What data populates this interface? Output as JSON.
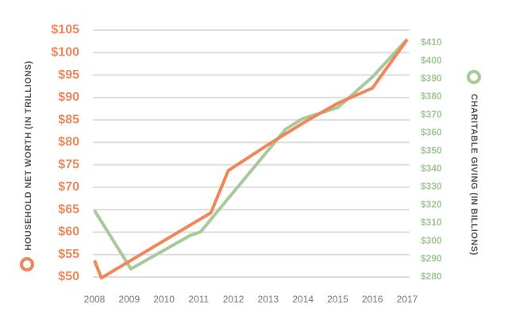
{
  "chart_data": {
    "type": "line",
    "ylabel": "HOUSEHOLD NET WORTH (IN TRILLIONS)",
    "y2label": "CHARITABLE GIVING (IN BILLIONS)",
    "xlim": [
      2008,
      2017
    ],
    "xticks": [
      2008,
      2009,
      2010,
      2011,
      2012,
      2013,
      2014,
      2015,
      2016,
      2017
    ],
    "ylim": [
      50,
      105
    ],
    "yticks": [
      {
        "value": 50,
        "label": "$50"
      },
      {
        "value": 55,
        "label": "$55"
      },
      {
        "value": 60,
        "label": "$60"
      },
      {
        "value": 65,
        "label": "$65"
      },
      {
        "value": 70,
        "label": "$70"
      },
      {
        "value": 75,
        "label": "$75"
      },
      {
        "value": 80,
        "label": "$80"
      },
      {
        "value": 85,
        "label": "$85"
      },
      {
        "value": 90,
        "label": "$90"
      },
      {
        "value": 95,
        "label": "$95"
      },
      {
        "value": 100,
        "label": "$100"
      },
      {
        "value": 105,
        "label": "$105"
      }
    ],
    "y2lim": [
      280,
      417
    ],
    "y2ticks": [
      {
        "value": 280,
        "label": "$280"
      },
      {
        "value": 290,
        "label": "$290"
      },
      {
        "value": 300,
        "label": "$300"
      },
      {
        "value": 310,
        "label": "$310"
      },
      {
        "value": 320,
        "label": "$320"
      },
      {
        "value": 330,
        "label": "$330"
      },
      {
        "value": 340,
        "label": "$340"
      },
      {
        "value": 350,
        "label": "$350"
      },
      {
        "value": 360,
        "label": "$360"
      },
      {
        "value": 370,
        "label": "$370"
      },
      {
        "value": 380,
        "label": "$380"
      },
      {
        "value": 390,
        "label": "$390"
      },
      {
        "value": 400,
        "label": "$400"
      },
      {
        "value": 410,
        "label": "$410"
      }
    ],
    "grid": true,
    "series": [
      {
        "color": "#a8c99a",
        "axis": "y2",
        "x": [
          2008,
          2009.05,
          2010.75,
          2011.05,
          2013.5,
          2014,
          2015,
          2016,
          2017
        ],
        "values": [
          317,
          284.5,
          303,
          305,
          362,
          368,
          374,
          391,
          412
        ]
      },
      {
        "color": "#f0875a",
        "x": [
          2008,
          2008.2,
          2011.35,
          2011.85,
          2013,
          2014,
          2015,
          2016,
          2017
        ],
        "values": [
          53.7,
          49.8,
          64.3,
          73.7,
          79.5,
          84.3,
          88.7,
          92.1,
          102.9
        ]
      }
    ]
  }
}
